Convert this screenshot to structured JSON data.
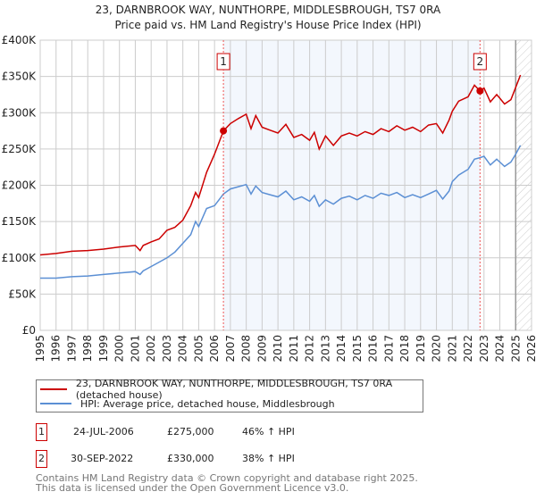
{
  "chart_data": {
    "type": "line",
    "title": "23, DARNBROOK WAY, NUNTHORPE, MIDDLESBROUGH, TS7 0RA",
    "subtitle": "Price paid vs. HM Land Registry's House Price Index (HPI)",
    "xlim": [
      1995,
      2026
    ],
    "ylim": [
      0,
      400000
    ],
    "xticks": [
      "1995",
      "1996",
      "1997",
      "1998",
      "1999",
      "2000",
      "2001",
      "2002",
      "2003",
      "2004",
      "2005",
      "2006",
      "2007",
      "2008",
      "2009",
      "2010",
      "2011",
      "2012",
      "2013",
      "2014",
      "2015",
      "2016",
      "2017",
      "2018",
      "2019",
      "2020",
      "2021",
      "2022",
      "2023",
      "2024",
      "2025",
      "2026"
    ],
    "yticks": [
      {
        "v": 0,
        "label": "£0"
      },
      {
        "v": 50000,
        "label": "£50K"
      },
      {
        "v": 100000,
        "label": "£100K"
      },
      {
        "v": 150000,
        "label": "£150K"
      },
      {
        "v": 200000,
        "label": "£200K"
      },
      {
        "v": 250000,
        "label": "£250K"
      },
      {
        "v": 300000,
        "label": "£300K"
      },
      {
        "v": 350000,
        "label": "£350K"
      },
      {
        "v": 400000,
        "label": "£400K"
      }
    ],
    "grid": true,
    "forecast_start": 2025.0,
    "series": [
      {
        "name": "23, DARNBROOK WAY, NUNTHORPE, MIDDLESBROUGH, TS7 0RA (detached house)",
        "color": "#cc0000",
        "x": [
          1995,
          1996,
          1997,
          1998,
          1999,
          2000,
          2001,
          2001.3,
          2001.5,
          2002,
          2002.5,
          2003,
          2003.5,
          2004,
          2004.5,
          2004.8,
          2005,
          2005.5,
          2006,
          2006.56,
          2007,
          2007.5,
          2008,
          2008.3,
          2008.6,
          2009,
          2009.5,
          2010,
          2010.5,
          2011,
          2011.5,
          2012,
          2012.3,
          2012.6,
          2013,
          2013.5,
          2014,
          2014.5,
          2015,
          2015.5,
          2016,
          2016.5,
          2017,
          2017.5,
          2018,
          2018.5,
          2019,
          2019.5,
          2020,
          2020.4,
          2020.8,
          2021,
          2021.4,
          2022,
          2022.4,
          2022.75,
          2023,
          2023.4,
          2023.8,
          2024,
          2024.3,
          2024.7,
          2025,
          2025.3
        ],
        "y": [
          104000,
          106000,
          109000,
          110000,
          112000,
          115000,
          117000,
          110000,
          117000,
          122000,
          126000,
          138000,
          142000,
          152000,
          172000,
          190000,
          183000,
          218000,
          243000,
          275000,
          285000,
          292000,
          298000,
          278000,
          296000,
          280000,
          276000,
          272000,
          284000,
          266000,
          270000,
          262000,
          273000,
          250000,
          268000,
          255000,
          268000,
          272000,
          268000,
          274000,
          270000,
          278000,
          274000,
          282000,
          276000,
          280000,
          274000,
          283000,
          285000,
          272000,
          290000,
          302000,
          316000,
          322000,
          338000,
          330000,
          334000,
          315000,
          325000,
          320000,
          312000,
          318000,
          335000,
          352000
        ]
      },
      {
        "name": "HPI: Average price, detached house, Middlesbrough",
        "color": "#5b8fd4",
        "x": [
          1995,
          1996,
          1997,
          1998,
          1999,
          2000,
          2001,
          2001.3,
          2001.5,
          2002,
          2002.5,
          2003,
          2003.5,
          2004,
          2004.5,
          2004.8,
          2005,
          2005.5,
          2006,
          2006.56,
          2007,
          2007.5,
          2008,
          2008.3,
          2008.6,
          2009,
          2009.5,
          2010,
          2010.5,
          2011,
          2011.5,
          2012,
          2012.3,
          2012.6,
          2013,
          2013.5,
          2014,
          2014.5,
          2015,
          2015.5,
          2016,
          2016.5,
          2017,
          2017.5,
          2018,
          2018.5,
          2019,
          2019.5,
          2020,
          2020.4,
          2020.8,
          2021,
          2021.4,
          2022,
          2022.4,
          2022.75,
          2023,
          2023.4,
          2023.8,
          2024,
          2024.3,
          2024.7,
          2025,
          2025.3
        ],
        "y": [
          72000,
          72000,
          74000,
          75000,
          77000,
          79000,
          81000,
          77000,
          82000,
          88000,
          94000,
          100000,
          108000,
          120000,
          132000,
          150000,
          143000,
          168000,
          172000,
          188000,
          195000,
          198000,
          201000,
          188000,
          199000,
          190000,
          187000,
          184000,
          192000,
          180000,
          184000,
          178000,
          186000,
          171000,
          180000,
          174000,
          182000,
          185000,
          180000,
          186000,
          182000,
          189000,
          186000,
          190000,
          183000,
          187000,
          183000,
          188000,
          193000,
          181000,
          192000,
          205000,
          214000,
          222000,
          236000,
          238000,
          240000,
          228000,
          236000,
          232000,
          226000,
          232000,
          243000,
          255000
        ]
      }
    ],
    "markers": [
      {
        "label": "1",
        "x": 2006.56,
        "y": 275000
      },
      {
        "label": "2",
        "x": 2022.75,
        "y": 330000
      }
    ]
  },
  "table": [
    {
      "num": "1",
      "date": "24-JUL-2006",
      "price": "£275,000",
      "hpi": "46% ↑ HPI"
    },
    {
      "num": "2",
      "date": "30-SEP-2022",
      "price": "£330,000",
      "hpi": "38% ↑ HPI"
    }
  ],
  "footer": [
    "Contains HM Land Registry data © Crown copyright and database right 2025.",
    "This data is licensed under the Open Government Licence v3.0."
  ]
}
